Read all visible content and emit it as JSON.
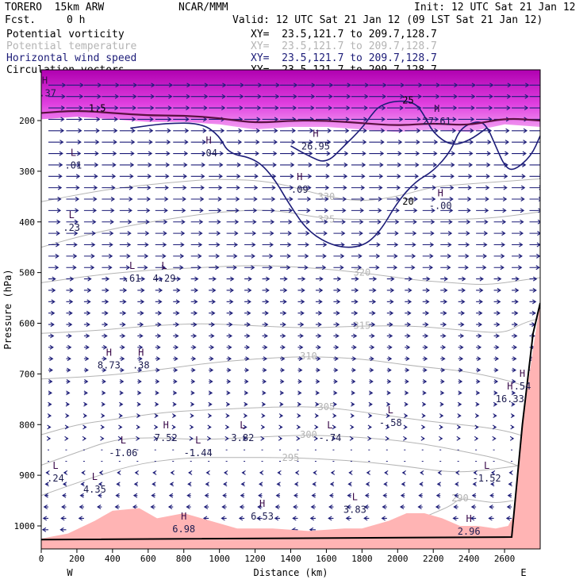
{
  "header": {
    "model": "TORERO  15km ARW",
    "center": "NCAR/MMM",
    "init": "Init: 12 UTC Sat 21 Jan 12",
    "fcst_label": "Fcst.",
    "fcst_value": "0 h",
    "valid": "Valid: 12 UTC Sat 21 Jan 12 (09 LST Sat 21 Jan 12)",
    "fields": [
      {
        "name": "Potential vorticity",
        "xy": "XY=  23.5,121.7 to 209.7,128.7",
        "color": "#000000"
      },
      {
        "name": "Potential temperature",
        "xy": "XY=  23.5,121.7 to 209.7,128.7",
        "color": "#b4b4b4"
      },
      {
        "name": "Horizontal wind speed",
        "xy": "XY=  23.5,121.7 to 209.7,128.7",
        "color": "#1c1c78"
      },
      {
        "name": "Circulation vectors",
        "xy": "XY=  23.5,121.7 to 209.7,128.7",
        "color": "#000000"
      }
    ]
  },
  "chart_data": {
    "type": "cross-section",
    "xlabel": "Distance (km)",
    "ylabel": "Pressure (hPa)",
    "x_ticks": [
      0,
      200,
      400,
      600,
      800,
      1000,
      1200,
      1400,
      1600,
      1800,
      2000,
      2200,
      2400,
      2600
    ],
    "y_ticks": [
      200,
      300,
      400,
      500,
      600,
      700,
      800,
      900,
      1000
    ],
    "xlim": [
      0,
      2800
    ],
    "ylim": [
      1050,
      100
    ],
    "end_labels": {
      "left": "W",
      "right": "E"
    },
    "colors": {
      "pv_fill": "#d400d4",
      "terrain_fill": "#ffb4b4",
      "theta": "#b4b4b4",
      "wind": "#1c1c78",
      "pv_line": "#5a1040"
    },
    "theta_contours": [
      {
        "label": "330",
        "points": [
          [
            0,
            360
          ],
          [
            300,
            340
          ],
          [
            500,
            330
          ],
          [
            800,
            320
          ],
          [
            1000,
            315
          ],
          [
            1300,
            320
          ],
          [
            1600,
            350
          ],
          [
            1800,
            360
          ],
          [
            2000,
            350
          ],
          [
            2200,
            330
          ],
          [
            2400,
            325
          ],
          [
            2600,
            320
          ],
          [
            2800,
            315
          ]
        ]
      },
      {
        "label": "325",
        "points": [
          [
            0,
            450
          ],
          [
            200,
            430
          ],
          [
            450,
            410
          ],
          [
            700,
            395
          ],
          [
            1000,
            380
          ],
          [
            1300,
            375
          ],
          [
            1600,
            395
          ],
          [
            1900,
            395
          ],
          [
            2200,
            395
          ],
          [
            2400,
            395
          ],
          [
            2600,
            390
          ],
          [
            2800,
            380
          ]
        ]
      },
      {
        "label": "320",
        "points": [
          [
            0,
            520
          ],
          [
            300,
            505
          ],
          [
            600,
            495
          ],
          [
            900,
            490
          ],
          [
            1200,
            485
          ],
          [
            1500,
            490
          ],
          [
            1800,
            500
          ],
          [
            2100,
            515
          ],
          [
            2300,
            520
          ],
          [
            2500,
            525
          ],
          [
            2700,
            515
          ],
          [
            2800,
            510
          ]
        ]
      },
      {
        "label": "315",
        "points": [
          [
            0,
            620
          ],
          [
            300,
            615
          ],
          [
            600,
            605
          ],
          [
            900,
            600
          ],
          [
            1200,
            605
          ],
          [
            1500,
            610
          ],
          [
            1800,
            605
          ],
          [
            2100,
            605
          ],
          [
            2400,
            615
          ],
          [
            2600,
            620
          ],
          [
            2700,
            600
          ],
          [
            2800,
            590
          ]
        ]
      },
      {
        "label": "310",
        "points": [
          [
            0,
            710
          ],
          [
            300,
            705
          ],
          [
            600,
            695
          ],
          [
            900,
            680
          ],
          [
            1200,
            670
          ],
          [
            1500,
            665
          ],
          [
            1800,
            670
          ],
          [
            2100,
            685
          ],
          [
            2400,
            695
          ],
          [
            2700,
            720
          ],
          [
            2800,
            740
          ]
        ]
      },
      {
        "label": "305",
        "points": [
          [
            0,
            820
          ],
          [
            200,
            800
          ],
          [
            400,
            790
          ],
          [
            700,
            775
          ],
          [
            1000,
            770
          ],
          [
            1300,
            765
          ],
          [
            1600,
            765
          ],
          [
            1900,
            780
          ],
          [
            2200,
            795
          ],
          [
            2500,
            805
          ],
          [
            2700,
            820
          ],
          [
            2800,
            840
          ]
        ]
      },
      {
        "label": "300",
        "points": [
          [
            0,
            880
          ],
          [
            200,
            855
          ],
          [
            400,
            830
          ],
          [
            600,
            825
          ],
          [
            900,
            830
          ],
          [
            1200,
            825
          ],
          [
            1500,
            820
          ],
          [
            1800,
            825
          ],
          [
            2100,
            835
          ],
          [
            2400,
            855
          ],
          [
            2600,
            870
          ],
          [
            2800,
            900
          ]
        ]
      },
      {
        "label": "295",
        "points": [
          [
            0,
            940
          ],
          [
            200,
            915
          ],
          [
            500,
            880
          ],
          [
            800,
            865
          ],
          [
            1100,
            865
          ],
          [
            1400,
            865
          ],
          [
            1700,
            870
          ],
          [
            2000,
            880
          ],
          [
            2300,
            895
          ],
          [
            2500,
            890
          ],
          [
            2700,
            880
          ]
        ]
      },
      {
        "label": "290",
        "points": [
          [
            2100,
            990
          ],
          [
            2200,
            975
          ],
          [
            2300,
            960
          ],
          [
            2350,
            945
          ],
          [
            2450,
            950
          ],
          [
            2550,
            955
          ],
          [
            2650,
            950
          ]
        ]
      }
    ],
    "wind_contours": [
      {
        "label": "20",
        "points": [
          [
            500,
            215
          ],
          [
            700,
            205
          ],
          [
            900,
            205
          ],
          [
            1000,
            230
          ],
          [
            1050,
            265
          ],
          [
            1200,
            275
          ],
          [
            1300,
            310
          ],
          [
            1400,
            370
          ],
          [
            1500,
            420
          ],
          [
            1650,
            450
          ],
          [
            1800,
            450
          ],
          [
            1900,
            420
          ],
          [
            2000,
            360
          ],
          [
            2100,
            320
          ],
          [
            2200,
            300
          ],
          [
            2300,
            260
          ],
          [
            2350,
            215
          ],
          [
            2450,
            200
          ],
          [
            2500,
            210
          ],
          [
            2550,
            250
          ],
          [
            2600,
            290
          ],
          [
            2650,
            300
          ],
          [
            2750,
            270
          ],
          [
            2800,
            230
          ]
        ]
      },
      {
        "label": "25",
        "points": [
          [
            1400,
            250
          ],
          [
            1500,
            270
          ],
          [
            1600,
            285
          ],
          [
            1700,
            250
          ],
          [
            1800,
            215
          ],
          [
            1850,
            190
          ],
          [
            1900,
            170
          ],
          [
            2000,
            160
          ],
          [
            2100,
            165
          ],
          [
            2150,
            190
          ],
          [
            2200,
            225
          ],
          [
            2300,
            250
          ],
          [
            2400,
            240
          ],
          [
            2500,
            215
          ]
        ]
      }
    ],
    "pv_contours": [
      {
        "label": "1.5",
        "points": [
          [
            0,
            185
          ],
          [
            200,
            180
          ],
          [
            400,
            185
          ],
          [
            600,
            190
          ],
          [
            800,
            190
          ],
          [
            1000,
            195
          ],
          [
            1200,
            205
          ],
          [
            1400,
            200
          ],
          [
            1600,
            200
          ],
          [
            1800,
            205
          ],
          [
            2000,
            210
          ],
          [
            2200,
            205
          ],
          [
            2400,
            210
          ],
          [
            2600,
            195
          ],
          [
            2800,
            200
          ]
        ]
      }
    ],
    "terrain_top": [
      [
        0,
        1025
      ],
      [
        150,
        1015
      ],
      [
        300,
        990
      ],
      [
        400,
        970
      ],
      [
        550,
        965
      ],
      [
        650,
        985
      ],
      [
        800,
        975
      ],
      [
        950,
        990
      ],
      [
        1100,
        1005
      ],
      [
        1300,
        1005
      ],
      [
        1500,
        1010
      ],
      [
        1700,
        1005
      ],
      [
        1800,
        1005
      ],
      [
        1950,
        990
      ],
      [
        2050,
        975
      ],
      [
        2150,
        975
      ],
      [
        2250,
        985
      ],
      [
        2350,
        1000
      ],
      [
        2450,
        1000
      ],
      [
        2550,
        1005
      ],
      [
        2620,
        1000
      ],
      [
        2650,
        980
      ],
      [
        2700,
        800
      ],
      [
        2760,
        650
      ],
      [
        2800,
        560
      ]
    ],
    "extremes": [
      {
        "type": "H",
        "value": "1.37",
        "x": 20,
        "y": 140
      },
      {
        "type": "L",
        "value": ".01",
        "x": 180,
        "y": 282
      },
      {
        "type": "H",
        "value": ".04",
        "x": 940,
        "y": 258
      },
      {
        "type": "H",
        "value": "26.95",
        "x": 1540,
        "y": 245
      },
      {
        "type": "H",
        "value": ".09",
        "x": 1450,
        "y": 330
      },
      {
        "type": "H",
        "value": "-.00",
        "x": 2240,
        "y": 362
      },
      {
        "type": "L",
        "value": ".23",
        "x": 170,
        "y": 405
      },
      {
        "type": "L",
        "value": ".61",
        "x": 510,
        "y": 505
      },
      {
        "type": "L",
        "value": "4.29",
        "x": 690,
        "y": 505
      },
      {
        "type": "H",
        "value": "8.73",
        "x": 380,
        "y": 677
      },
      {
        "type": "H",
        "value": ".38",
        "x": 560,
        "y": 677
      },
      {
        "type": "H",
        "value": "7.52",
        "x": 700,
        "y": 820
      },
      {
        "type": "L",
        "value": "-1.44",
        "x": 880,
        "y": 850
      },
      {
        "type": "L",
        "value": "-1.06",
        "x": 460,
        "y": 850
      },
      {
        "type": "L",
        "value": "3.82",
        "x": 1130,
        "y": 820
      },
      {
        "type": "L",
        "value": "-.74",
        "x": 1620,
        "y": 820
      },
      {
        "type": "L",
        "value": "-.58",
        "x": 1960,
        "y": 790
      },
      {
        "type": "L",
        "value": ".24",
        "x": 80,
        "y": 900
      },
      {
        "type": "L",
        "value": "4.35",
        "x": 300,
        "y": 922
      },
      {
        "type": "H",
        "value": "6.53",
        "x": 1240,
        "y": 975
      },
      {
        "type": "L",
        "value": "3.83",
        "x": 1760,
        "y": 962
      },
      {
        "type": "H",
        "value": "6.98",
        "x": 800,
        "y": 1000
      },
      {
        "type": "H",
        "value": "2.96",
        "x": 2400,
        "y": 1005
      },
      {
        "type": "L",
        "value": "-1.52",
        "x": 2500,
        "y": 900
      },
      {
        "type": "H",
        "value": "16.33",
        "x": 2630,
        "y": 743
      },
      {
        "type": "H",
        "value": ".54",
        "x": 2700,
        "y": 718
      },
      {
        "type": "H",
        "value": "27.61",
        "x": 2220,
        "y": 195
      }
    ],
    "vectors": {
      "color": "#1c1c78",
      "upper_direction": "east",
      "lower_direction": "west"
    }
  }
}
